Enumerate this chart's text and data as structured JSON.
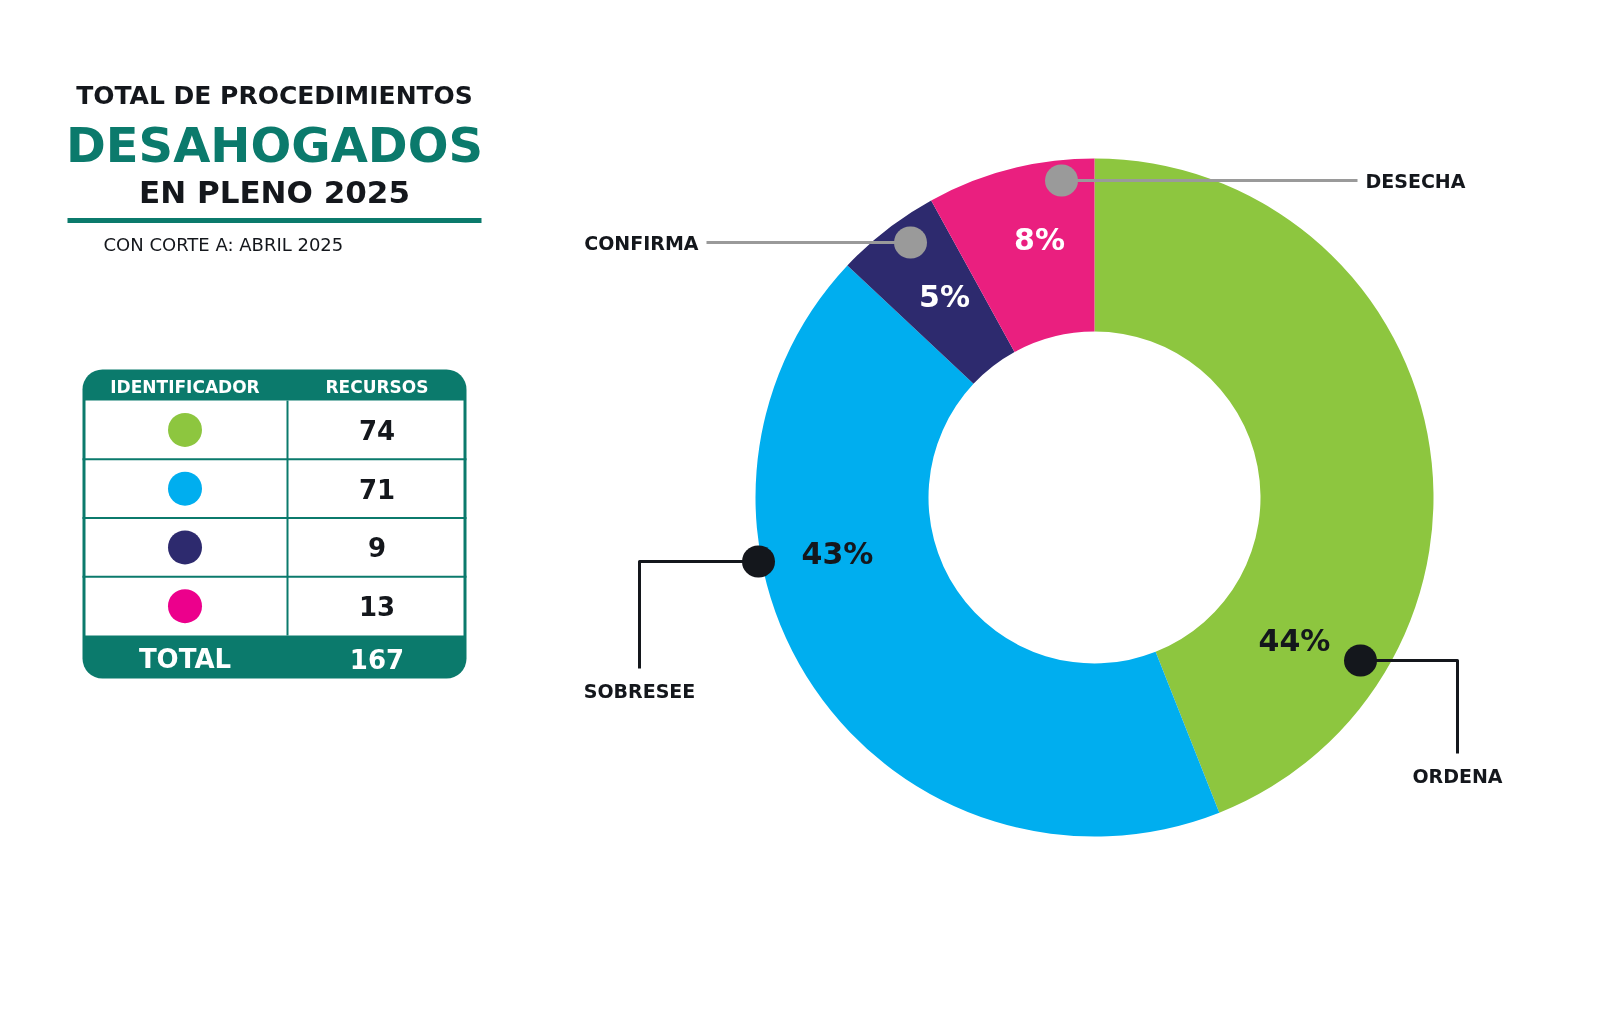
{
  "chart_data": [
    {
      "type": "other",
      "title": "TOTAL DE PROCEDIMIENTOS\nDESAHOGADOS\nEN PLENO 2025",
      "subtitle": "CON CORTE A: ABRIL 2025",
      "categories": [
        null,
        null,
        null,
        null
      ],
      "values": [
        74,
        71,
        9,
        13
      ],
      "colors": [
        "#8dc63f",
        "#00aeef",
        "#2d2a6e",
        "#ec008c"
      ],
      "data_labels": true,
      "annotations": [
        "IDENTIFICADOR",
        "RECURSOS",
        "TOTAL",
        "167"
      ]
    },
    {
      "type": "donut",
      "categories": [
        "ORDENA",
        "SOBRESEE",
        "CONFIRMA",
        "DESECHA"
      ],
      "values": [
        44,
        43,
        5,
        8
      ],
      "colors": [
        "#8dc63f",
        "#00aeef",
        "#2d2a6e",
        "#ea1f7f"
      ],
      "value_labels": [
        "44%",
        "43%",
        "5%",
        "8%"
      ]
    }
  ]
}
